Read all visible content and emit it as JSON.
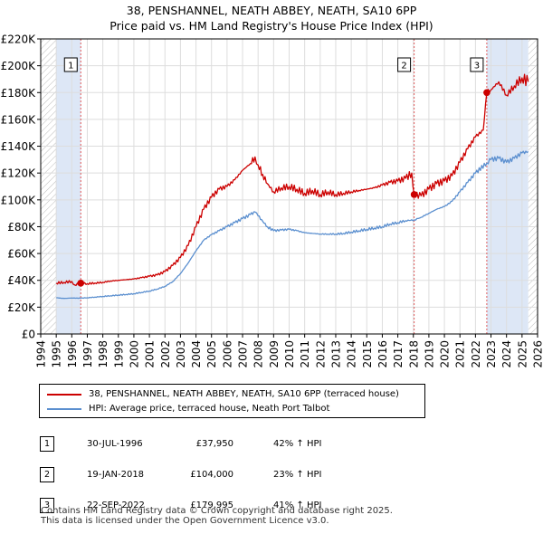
{
  "title": {
    "line1": "38, PENSHANNEL, NEATH ABBEY, NEATH, SA10 6PP",
    "line2": "Price paid vs. HM Land Registry's House Price Index (HPI)"
  },
  "colors": {
    "property": "#cc0000",
    "hpi": "#5b8fcf",
    "marker_line": "#e05a5a",
    "shade": "#dde7f6",
    "hatch": "#bbbbbb",
    "grid": "#dddddd"
  },
  "legend": {
    "property_label": "38, PENSHANNEL, NEATH ABBEY, NEATH, SA10 6PP (terraced house)",
    "hpi_label": "HPI: Average price, terraced house, Neath Port Talbot"
  },
  "sales": [
    {
      "num": "1",
      "date": "30-JUL-1996",
      "price": "£37,950",
      "hpi": "42% ↑ HPI"
    },
    {
      "num": "2",
      "date": "19-JAN-2018",
      "price": "£104,000",
      "hpi": "23% ↑ HPI"
    },
    {
      "num": "3",
      "date": "22-SEP-2022",
      "price": "£179,995",
      "hpi": "41% ↑ HPI"
    }
  ],
  "footer": {
    "line1": "Contains HM Land Registry data © Crown copyright and database right 2025.",
    "line2": "This data is licensed under the Open Government Licence v3.0."
  },
  "chart_data": {
    "type": "line",
    "title": "Price paid vs. HM Land Registry's House Price Index (HPI)",
    "xlim": [
      1994,
      2026
    ],
    "ylim": [
      0,
      220000
    ],
    "x_ticks": [
      1994,
      1995,
      1996,
      1997,
      1998,
      1999,
      2000,
      2001,
      2002,
      2003,
      2004,
      2005,
      2006,
      2007,
      2008,
      2009,
      2010,
      2011,
      2012,
      2013,
      2014,
      2015,
      2016,
      2017,
      2018,
      2019,
      2020,
      2021,
      2022,
      2023,
      2024,
      2025,
      2026
    ],
    "y_ticks": [
      {
        "value": 0,
        "label": "£0"
      },
      {
        "value": 20000,
        "label": "£20K"
      },
      {
        "value": 40000,
        "label": "£40K"
      },
      {
        "value": 60000,
        "label": "£60K"
      },
      {
        "value": 80000,
        "label": "£80K"
      },
      {
        "value": 100000,
        "label": "£100K"
      },
      {
        "value": 120000,
        "label": "£120K"
      },
      {
        "value": 140000,
        "label": "£140K"
      },
      {
        "value": 160000,
        "label": "£160K"
      },
      {
        "value": 180000,
        "label": "£180K"
      },
      {
        "value": 200000,
        "label": "£200K"
      },
      {
        "value": 220000,
        "label": "£220K"
      }
    ],
    "data_start": 1995.0,
    "data_end": 2025.4,
    "hatch_from": 2025.4,
    "series": [
      {
        "name": "38, PENSHANNEL, NEATH ABBEY, NEATH, SA10 6PP (terraced house)",
        "color": "#cc0000",
        "points": [
          [
            1995.0,
            38000
          ],
          [
            1995.5,
            38500
          ],
          [
            1996.0,
            39200
          ],
          [
            1996.2,
            36500
          ],
          [
            1996.58,
            37950
          ],
          [
            1997.0,
            37500
          ],
          [
            1997.5,
            38000
          ],
          [
            1998.0,
            38500
          ],
          [
            1998.5,
            39500
          ],
          [
            1999.0,
            40000
          ],
          [
            1999.5,
            40500
          ],
          [
            2000.0,
            41000
          ],
          [
            2000.5,
            42000
          ],
          [
            2001.0,
            43000
          ],
          [
            2001.5,
            44000
          ],
          [
            2002.0,
            46500
          ],
          [
            2002.5,
            51000
          ],
          [
            2003.0,
            57000
          ],
          [
            2003.5,
            66000
          ],
          [
            2004.0,
            80000
          ],
          [
            2004.5,
            93000
          ],
          [
            2005.0,
            102000
          ],
          [
            2005.5,
            108000
          ],
          [
            2006.0,
            110000
          ],
          [
            2006.5,
            115000
          ],
          [
            2007.0,
            122000
          ],
          [
            2007.5,
            127000
          ],
          [
            2007.8,
            132000
          ],
          [
            2008.0,
            126000
          ],
          [
            2008.3,
            119000
          ],
          [
            2008.6,
            112000
          ],
          [
            2009.0,
            106000
          ],
          [
            2009.5,
            109000
          ],
          [
            2010.0,
            110000
          ],
          [
            2010.5,
            108000
          ],
          [
            2011.0,
            105000
          ],
          [
            2011.5,
            107000
          ],
          [
            2012.0,
            104000
          ],
          [
            2012.5,
            106000
          ],
          [
            2013.0,
            104000
          ],
          [
            2013.5,
            105000
          ],
          [
            2014.0,
            106000
          ],
          [
            2014.5,
            107000
          ],
          [
            2015.0,
            108000
          ],
          [
            2015.5,
            109000
          ],
          [
            2016.0,
            111000
          ],
          [
            2016.5,
            113000
          ],
          [
            2017.0,
            114000
          ],
          [
            2017.5,
            116000
          ],
          [
            2017.9,
            120000
          ],
          [
            2018.05,
            104000
          ],
          [
            2018.5,
            103000
          ],
          [
            2019.0,
            108000
          ],
          [
            2019.5,
            112000
          ],
          [
            2020.0,
            114000
          ],
          [
            2020.5,
            118000
          ],
          [
            2021.0,
            128000
          ],
          [
            2021.5,
            138000
          ],
          [
            2022.0,
            147000
          ],
          [
            2022.5,
            152000
          ],
          [
            2022.73,
            179995
          ],
          [
            2023.0,
            182000
          ],
          [
            2023.5,
            188000
          ],
          [
            2024.0,
            178000
          ],
          [
            2024.5,
            185000
          ],
          [
            2025.0,
            191000
          ],
          [
            2025.4,
            188000
          ]
        ]
      },
      {
        "name": "HPI: Average price, terraced house, Neath Port Talbot",
        "color": "#5b8fcf",
        "points": [
          [
            1995.0,
            27000
          ],
          [
            1995.5,
            26500
          ],
          [
            1996.0,
            26800
          ],
          [
            1996.58,
            26700
          ],
          [
            1997.0,
            27000
          ],
          [
            1997.5,
            27500
          ],
          [
            1998.0,
            28000
          ],
          [
            1998.5,
            28500
          ],
          [
            1999.0,
            29000
          ],
          [
            1999.5,
            29500
          ],
          [
            2000.0,
            30000
          ],
          [
            2000.5,
            31000
          ],
          [
            2001.0,
            32000
          ],
          [
            2001.5,
            33500
          ],
          [
            2002.0,
            35500
          ],
          [
            2002.5,
            39000
          ],
          [
            2003.0,
            45000
          ],
          [
            2003.5,
            53000
          ],
          [
            2004.0,
            62000
          ],
          [
            2004.5,
            70000
          ],
          [
            2005.0,
            74000
          ],
          [
            2005.5,
            77000
          ],
          [
            2006.0,
            80000
          ],
          [
            2006.5,
            83000
          ],
          [
            2007.0,
            86000
          ],
          [
            2007.5,
            89000
          ],
          [
            2007.8,
            91000
          ],
          [
            2008.0,
            88000
          ],
          [
            2008.3,
            84000
          ],
          [
            2008.6,
            80000
          ],
          [
            2009.0,
            77000
          ],
          [
            2009.5,
            77500
          ],
          [
            2010.0,
            78000
          ],
          [
            2010.5,
            77000
          ],
          [
            2011.0,
            75500
          ],
          [
            2011.5,
            75000
          ],
          [
            2012.0,
            74500
          ],
          [
            2012.5,
            74500
          ],
          [
            2013.0,
            74500
          ],
          [
            2013.5,
            75000
          ],
          [
            2014.0,
            76000
          ],
          [
            2014.5,
            77000
          ],
          [
            2015.0,
            78000
          ],
          [
            2015.5,
            79000
          ],
          [
            2016.0,
            80000
          ],
          [
            2016.5,
            82000
          ],
          [
            2017.0,
            83000
          ],
          [
            2017.5,
            84500
          ],
          [
            2018.05,
            85000
          ],
          [
            2018.5,
            87000
          ],
          [
            2019.0,
            90000
          ],
          [
            2019.5,
            93000
          ],
          [
            2020.0,
            95000
          ],
          [
            2020.5,
            99000
          ],
          [
            2021.0,
            106000
          ],
          [
            2021.5,
            113000
          ],
          [
            2022.0,
            120000
          ],
          [
            2022.73,
            127500
          ],
          [
            2023.0,
            130000
          ],
          [
            2023.5,
            131000
          ],
          [
            2024.0,
            128000
          ],
          [
            2024.5,
            131000
          ],
          [
            2025.0,
            135000
          ],
          [
            2025.4,
            136000
          ]
        ]
      }
    ],
    "markers": [
      {
        "label": "1",
        "x": 1996.58,
        "y": 37950
      },
      {
        "label": "2",
        "x": 2018.05,
        "y": 104000
      },
      {
        "label": "3",
        "x": 2022.73,
        "y": 179995
      }
    ]
  }
}
